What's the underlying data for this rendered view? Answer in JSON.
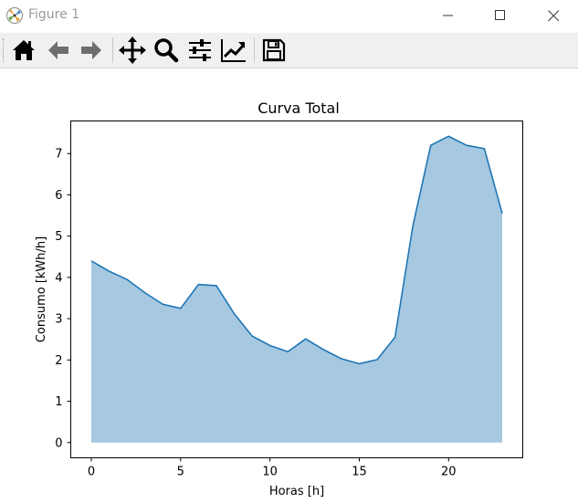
{
  "window": {
    "title": "Figure 1"
  },
  "toolbar": {
    "tools": [
      {
        "name": "home-icon",
        "label": "Home"
      },
      {
        "name": "back-arrow-icon",
        "label": "Back"
      },
      {
        "name": "forward-arrow-icon",
        "label": "Forward"
      },
      {
        "name": "pan-move-icon",
        "label": "Pan"
      },
      {
        "name": "zoom-magnifier-icon",
        "label": "Zoom"
      },
      {
        "name": "configure-subplots-icon",
        "label": "Subplots"
      },
      {
        "name": "edit-axis-icon",
        "label": "Customize"
      },
      {
        "name": "save-disk-icon",
        "label": "Save"
      }
    ]
  },
  "colors": {
    "line": "#1f77b4",
    "fill": "#a6c8e0",
    "disabled_icon": "#6e6e6e",
    "icon": "#000000"
  },
  "chart_data": {
    "type": "area",
    "title": "Curva Total",
    "xlabel": "Horas [h]",
    "ylabel": "Consumo [kWh/h]",
    "x": [
      0,
      1,
      2,
      3,
      4,
      5,
      6,
      7,
      8,
      9,
      10,
      11,
      12,
      13,
      14,
      15,
      16,
      17,
      18,
      19,
      20,
      21,
      22,
      23
    ],
    "y": [
      4.4,
      4.15,
      3.95,
      3.63,
      3.35,
      3.25,
      3.83,
      3.8,
      3.12,
      2.58,
      2.35,
      2.2,
      2.51,
      2.25,
      2.03,
      1.91,
      2.01,
      2.55,
      5.25,
      7.2,
      7.42,
      7.2,
      7.12,
      5.55
    ],
    "xticks": [
      "0",
      "5",
      "10",
      "15",
      "20"
    ],
    "yticks": [
      "0",
      "1",
      "2",
      "3",
      "4",
      "5",
      "6",
      "7"
    ],
    "xlim": [
      -1.15,
      24.15
    ],
    "ylim": [
      -0.37,
      7.79
    ],
    "grid": false,
    "legend": "none"
  }
}
